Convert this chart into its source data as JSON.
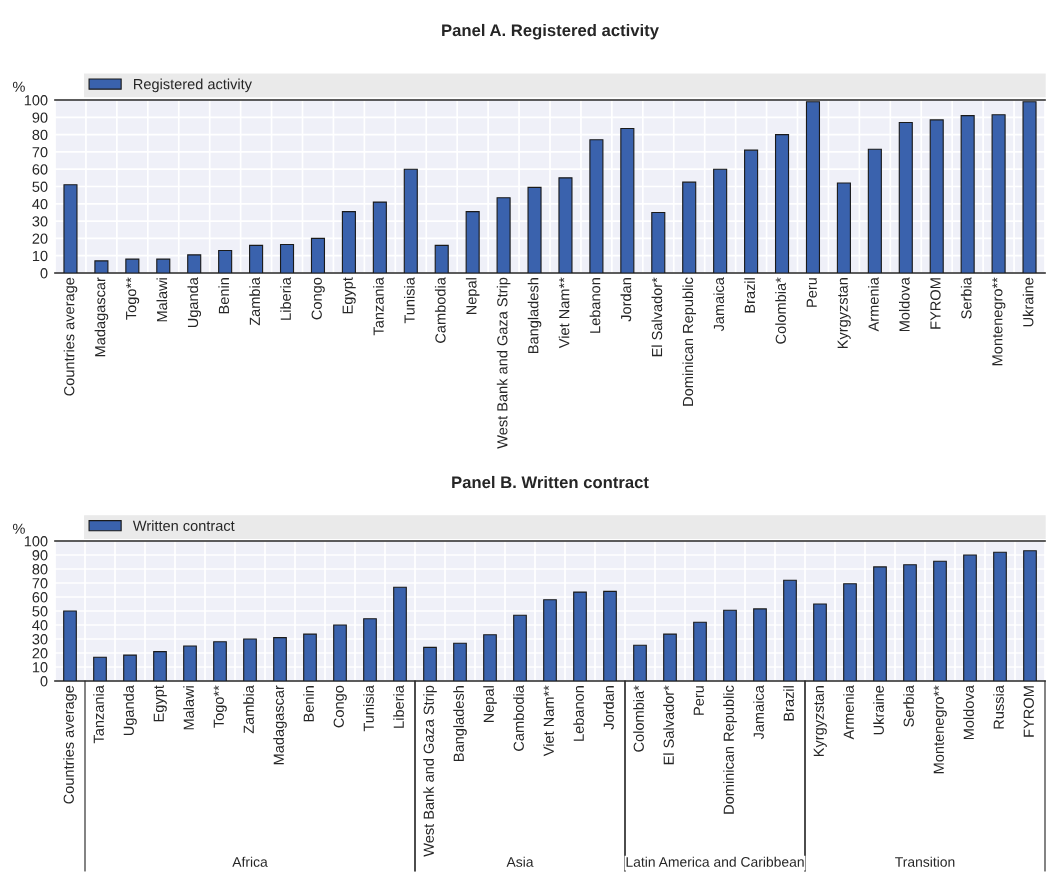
{
  "chart_data": [
    {
      "type": "bar",
      "title": "Panel A. Registered activity",
      "ylabel": "%",
      "legend": "top",
      "grid": true,
      "categories": [
        "Countries average",
        "Madagascar",
        "Togo**",
        "Malawi",
        "Uganda",
        "Benin",
        "Zambia",
        "Liberia",
        "Congo",
        "Egypt",
        "Tanzania",
        "Tunisia",
        "Cambodia",
        "Nepal",
        "West Bank and Gaza Strip",
        "Bangladesh",
        "Viet Nam**",
        "Lebanon",
        "Jordan",
        "El Salvador*",
        "Dominican Republic",
        "Jamaica",
        "Brazil",
        "Colombia*",
        "Peru",
        "Kyrgyzstan",
        "Armenia",
        "Moldova",
        "FYROM",
        "Serbia",
        "Montenegro**",
        "Ukraine"
      ],
      "series": [
        {
          "name": "Registered activity",
          "color": "#3a62ad",
          "values": [
            51,
            7,
            8,
            8,
            10.5,
            13,
            16,
            16.5,
            20,
            35.5,
            41,
            60,
            16,
            35.5,
            43.5,
            49.5,
            55,
            77,
            83.5,
            35,
            52.5,
            60,
            71,
            80,
            99,
            52,
            71.5,
            87,
            88.5,
            91,
            91.5,
            99
          ]
        }
      ],
      "ylim": [
        0,
        100
      ],
      "yticks": [
        0,
        10,
        20,
        30,
        40,
        50,
        60,
        70,
        80,
        90,
        100
      ]
    },
    {
      "type": "bar",
      "title": "Panel B. Written contract",
      "ylabel": "%",
      "legend": "top",
      "grid": true,
      "categories": [
        "Countries average",
        "Tanzania",
        "Uganda",
        "Egypt",
        "Malawi",
        "Togo**",
        "Zambia",
        "Madagascar",
        "Benin",
        "Congo",
        "Tunisia",
        "Liberia",
        "West Bank and Gaza Strip",
        "Bangladesh",
        "Nepal",
        "Cambodia",
        "Viet Nam**",
        "Lebanon",
        "Jordan",
        "Colombia*",
        "El Salvador*",
        "Peru",
        "Dominican Republic",
        "Jamaica",
        "Brazil",
        "Kyrgyzstan",
        "Armenia",
        "Ukraine",
        "Serbia",
        "Montenegro**",
        "Moldova",
        "Russia",
        "FYROM"
      ],
      "series": [
        {
          "name": "Written contract",
          "color": "#3a62ad",
          "values": [
            50,
            17,
            18.5,
            21,
            25,
            28,
            30,
            31,
            33.5,
            40,
            44.5,
            67,
            24,
            27,
            33,
            47,
            58,
            63.5,
            64,
            25.5,
            33.5,
            42,
            50.5,
            51.5,
            72,
            55,
            69.5,
            81.5,
            83,
            85.5,
            90,
            92,
            93
          ]
        }
      ],
      "ylim": [
        0,
        100
      ],
      "yticks": [
        0,
        10,
        20,
        30,
        40,
        50,
        60,
        70,
        80,
        90,
        100
      ],
      "annotations": [
        "Africa",
        "Asia",
        "Latin America and Caribbean",
        "Transition"
      ]
    }
  ]
}
